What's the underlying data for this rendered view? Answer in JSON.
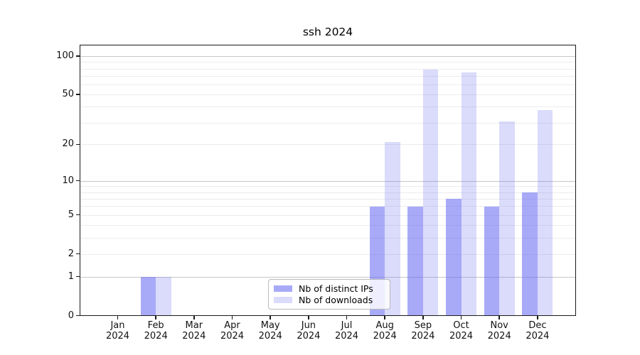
{
  "chart_data": {
    "type": "bar",
    "title": "ssh 2024",
    "x_categories": [
      "Jan",
      "Feb",
      "Mar",
      "Apr",
      "May",
      "Jun",
      "Jul",
      "Aug",
      "Sep",
      "Oct",
      "Nov",
      "Dec"
    ],
    "x_year_sublabel": "2024",
    "series": [
      {
        "name": "Nb of distinct IPs",
        "color": "rgba(100,104,242,0.56)",
        "values": [
          0,
          1,
          0,
          0,
          0,
          0,
          0,
          6,
          6,
          7,
          6,
          8
        ]
      },
      {
        "name": "Nb of downloads",
        "color": "rgba(100,104,242,0.235)",
        "values": [
          0,
          1,
          0,
          0,
          0,
          0,
          0,
          21,
          79,
          75,
          31,
          38
        ]
      }
    ],
    "y_scale": "symlog-log1p",
    "ylim": [
      0,
      122
    ],
    "y_tick_labels": [
      "0",
      "1",
      "2",
      "5",
      "10",
      "20",
      "50",
      "100"
    ],
    "y_tick_values": [
      0,
      1,
      2,
      5,
      10,
      20,
      50,
      100
    ],
    "y_major_gridlines": [
      1,
      10,
      100
    ],
    "y_minor_gridlines": [
      2,
      3,
      4,
      5,
      6,
      7,
      8,
      9,
      20,
      30,
      40,
      50,
      60,
      70,
      80,
      90
    ],
    "grid": "on",
    "legend_position": "lower-center"
  }
}
